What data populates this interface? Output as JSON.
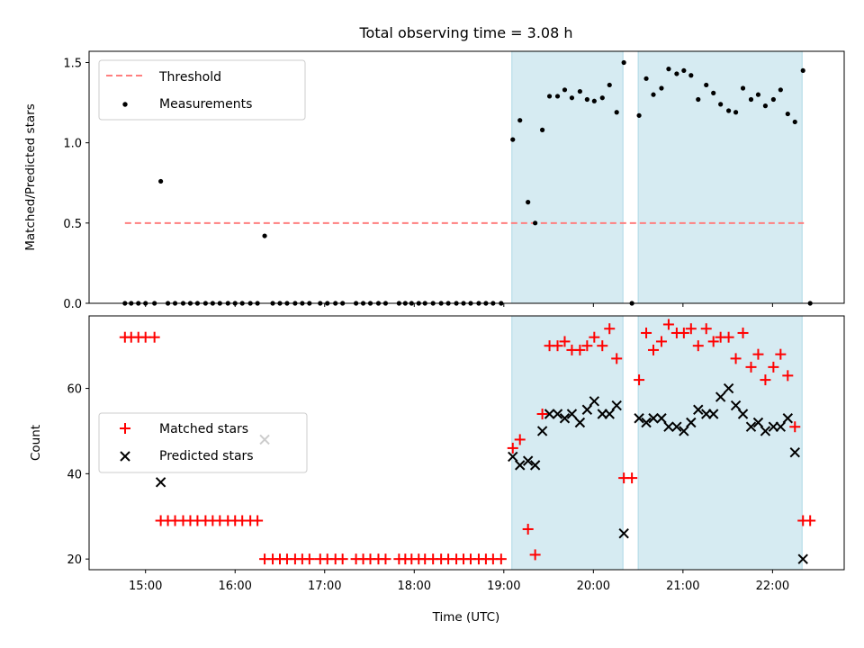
{
  "chart_data": {
    "type": "scatter",
    "title": "Total observing time = 3.08 h",
    "xlabel": "Time (UTC)",
    "xticks": [
      {
        "value": 15,
        "label": "15:00"
      },
      {
        "value": 16,
        "label": "16:00"
      },
      {
        "value": 17,
        "label": "17:00"
      },
      {
        "value": 18,
        "label": "18:00"
      },
      {
        "value": 19,
        "label": "19:00"
      },
      {
        "value": 20,
        "label": "20:00"
      },
      {
        "value": 21,
        "label": "21:00"
      },
      {
        "value": 22,
        "label": "22:00"
      }
    ],
    "xlim": [
      14.37,
      22.8
    ],
    "shaded_intervals": [
      [
        19.09,
        20.33
      ],
      [
        20.5,
        22.33
      ]
    ],
    "shade_color": "#add8e6",
    "panels": [
      {
        "ylabel": "Matched/Predicted stars",
        "ylim": [
          0,
          1.57
        ],
        "yticks": [
          {
            "value": 0,
            "label": "0.0"
          },
          {
            "value": 0.5,
            "label": "0.5"
          },
          {
            "value": 1,
            "label": "1.0"
          },
          {
            "value": 1.5,
            "label": "1.5"
          }
        ],
        "threshold": {
          "name": "Threshold",
          "value": 0.5,
          "x": [
            14.77,
            22.35
          ],
          "color": "#ff7f7f"
        },
        "series": [
          {
            "name": "Measurements",
            "marker": "dot",
            "color": "#000000",
            "x": [
              14.77,
              14.84,
              14.92,
              15.0,
              15.1,
              15.17,
              15.25,
              15.33,
              15.42,
              15.5,
              15.58,
              15.67,
              15.75,
              15.83,
              15.92,
              16.0,
              16.08,
              16.17,
              16.25,
              16.33,
              16.42,
              16.5,
              16.58,
              16.67,
              16.75,
              16.83,
              16.95,
              17.03,
              17.12,
              17.2,
              17.35,
              17.43,
              17.51,
              17.6,
              17.68,
              17.83,
              17.9,
              17.97,
              18.05,
              18.12,
              18.21,
              18.3,
              18.38,
              18.47,
              18.55,
              18.63,
              18.72,
              18.8,
              18.88,
              18.97,
              19.1,
              19.18,
              19.27,
              19.35,
              19.43,
              19.51,
              19.6,
              19.68,
              19.76,
              19.85,
              19.93,
              20.01,
              20.1,
              20.18,
              20.26,
              20.34,
              20.43,
              20.51,
              20.59,
              20.67,
              20.76,
              20.84,
              20.93,
              21.01,
              21.09,
              21.17,
              21.26,
              21.34,
              21.42,
              21.51,
              21.59,
              21.67,
              21.76,
              21.84,
              21.92,
              22.01,
              22.09,
              22.17,
              22.25,
              22.34,
              22.42
            ],
            "y": [
              0,
              0,
              0,
              0,
              0,
              0.76,
              0,
              0,
              0,
              0,
              0,
              0,
              0,
              0,
              0,
              0,
              0,
              0,
              0,
              0.42,
              0,
              0,
              0,
              0,
              0,
              0,
              0,
              0,
              0,
              0,
              0,
              0,
              0,
              0,
              0,
              0,
              0,
              0,
              0,
              0,
              0,
              0,
              0,
              0,
              0,
              0,
              0,
              0,
              0,
              0,
              1.02,
              1.14,
              0.63,
              0.5,
              1.08,
              1.29,
              1.29,
              1.33,
              1.28,
              1.32,
              1.27,
              1.26,
              1.28,
              1.36,
              1.19,
              1.5,
              0,
              1.17,
              1.4,
              1.3,
              1.34,
              1.46,
              1.43,
              1.45,
              1.42,
              1.27,
              1.36,
              1.31,
              1.24,
              1.2,
              1.19,
              1.34,
              1.27,
              1.3,
              1.23,
              1.27,
              1.33,
              1.18,
              1.13,
              1.45,
              0
            ]
          }
        ]
      },
      {
        "ylabel": "Count",
        "ylim": [
          17.5,
          77
        ],
        "yticks": [
          {
            "value": 20,
            "label": "20"
          },
          {
            "value": 40,
            "label": "40"
          },
          {
            "value": 60,
            "label": "60"
          }
        ],
        "series": [
          {
            "name": "Matched stars",
            "marker": "plus",
            "color": "#ff0000",
            "x": [
              14.77,
              14.84,
              14.92,
              15.0,
              15.1,
              15.17,
              15.25,
              15.33,
              15.42,
              15.5,
              15.58,
              15.67,
              15.75,
              15.83,
              15.92,
              16.0,
              16.08,
              16.17,
              16.25,
              16.33,
              16.42,
              16.5,
              16.58,
              16.67,
              16.75,
              16.83,
              16.95,
              17.03,
              17.12,
              17.2,
              17.35,
              17.43,
              17.51,
              17.6,
              17.68,
              17.83,
              17.9,
              17.97,
              18.05,
              18.12,
              18.21,
              18.3,
              18.38,
              18.47,
              18.55,
              18.63,
              18.72,
              18.8,
              18.88,
              18.97,
              19.1,
              19.18,
              19.27,
              19.35,
              19.43,
              19.51,
              19.6,
              19.68,
              19.76,
              19.85,
              19.93,
              20.01,
              20.1,
              20.18,
              20.26,
              20.34,
              20.43,
              20.51,
              20.59,
              20.67,
              20.76,
              20.84,
              20.93,
              21.01,
              21.09,
              21.17,
              21.26,
              21.34,
              21.42,
              21.51,
              21.59,
              21.67,
              21.76,
              21.84,
              21.92,
              22.01,
              22.09,
              22.17,
              22.25,
              22.34,
              22.42
            ],
            "y": [
              72,
              72,
              72,
              72,
              72,
              29,
              29,
              29,
              29,
              29,
              29,
              29,
              29,
              29,
              29,
              29,
              29,
              29,
              29,
              20,
              20,
              20,
              20,
              20,
              20,
              20,
              20,
              20,
              20,
              20,
              20,
              20,
              20,
              20,
              20,
              20,
              20,
              20,
              20,
              20,
              20,
              20,
              20,
              20,
              20,
              20,
              20,
              20,
              20,
              20,
              46,
              48,
              27,
              21,
              54,
              70,
              70,
              71,
              69,
              69,
              70,
              72,
              70,
              74,
              67,
              39,
              39,
              62,
              73,
              69,
              71,
              75,
              73,
              73,
              74,
              70,
              74,
              71,
              72,
              72,
              67,
              73,
              65,
              68,
              62,
              65,
              68,
              63,
              51,
              29,
              29
            ]
          },
          {
            "name": "Predicted stars",
            "marker": "x",
            "color": "#000000",
            "x": [
              15.17,
              16.33,
              19.1,
              19.18,
              19.27,
              19.35,
              19.43,
              19.51,
              19.6,
              19.68,
              19.76,
              19.85,
              19.93,
              20.01,
              20.1,
              20.18,
              20.26,
              20.34,
              20.51,
              20.59,
              20.67,
              20.76,
              20.84,
              20.93,
              21.01,
              21.09,
              21.17,
              21.26,
              21.34,
              21.42,
              21.51,
              21.59,
              21.67,
              21.76,
              21.84,
              21.92,
              22.01,
              22.09,
              22.17,
              22.25,
              22.34
            ],
            "y": [
              38,
              48,
              44,
              42,
              43,
              42,
              50,
              54,
              54,
              53,
              54,
              52,
              55,
              57,
              54,
              54,
              56,
              26,
              53,
              52,
              53,
              53,
              51,
              51,
              50,
              52,
              55,
              54,
              54,
              58,
              60,
              56,
              54,
              51,
              52,
              50,
              51,
              51,
              53,
              45,
              20
            ]
          }
        ]
      }
    ]
  }
}
